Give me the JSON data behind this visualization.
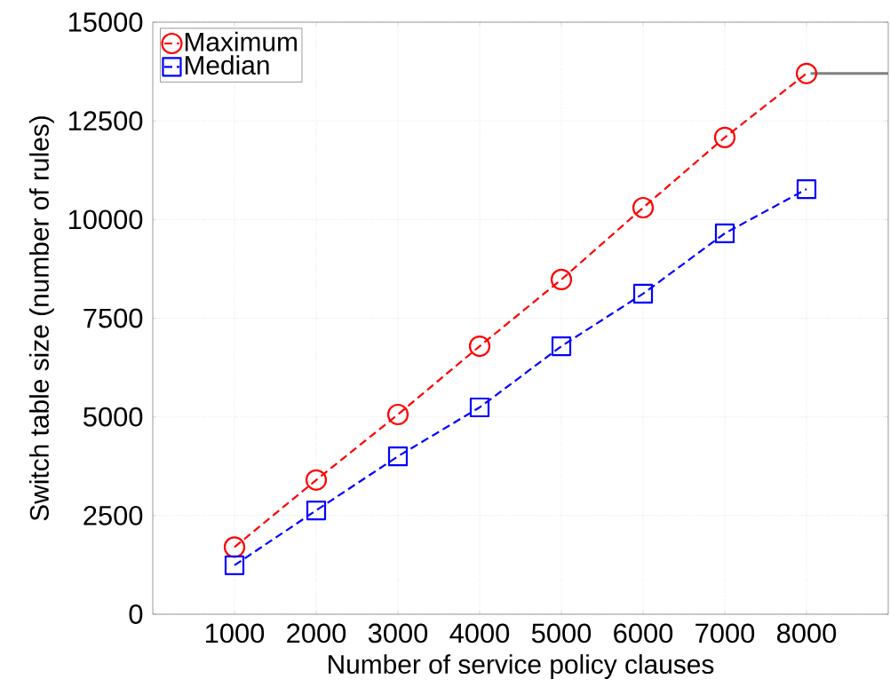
{
  "chart_data": {
    "type": "line",
    "xlabel": "Number of service policy clauses",
    "ylabel": "Switch table size (number of rules)",
    "x": [
      1000,
      2000,
      3000,
      4000,
      5000,
      6000,
      7000,
      8000
    ],
    "series": [
      {
        "name": "Maximum",
        "color": "#ff0000",
        "marker": "circle",
        "line_style": "dashed",
        "values": [
          1700,
          3400,
          5060,
          6790,
          8480,
          10300,
          12080,
          13700
        ]
      },
      {
        "name": "Median",
        "color": "#0000ff",
        "marker": "square",
        "line_style": "dashed",
        "values": [
          1240,
          2630,
          4000,
          5240,
          6790,
          8120,
          9650,
          10770
        ]
      },
      {
        "color": "#808080",
        "marker": "none",
        "line_style": "solid",
        "x": [
          8050,
          9000
        ],
        "values": [
          13700,
          13700
        ]
      }
    ],
    "xlim": [
      0,
      9000
    ],
    "xticks": [
      1000,
      2000,
      3000,
      4000,
      5000,
      6000,
      7000,
      8000
    ],
    "ylim": [
      0,
      15000
    ],
    "yticks": [
      0,
      2500,
      5000,
      7500,
      10000,
      12500,
      15000
    ],
    "grid": true,
    "legend": "top left"
  }
}
